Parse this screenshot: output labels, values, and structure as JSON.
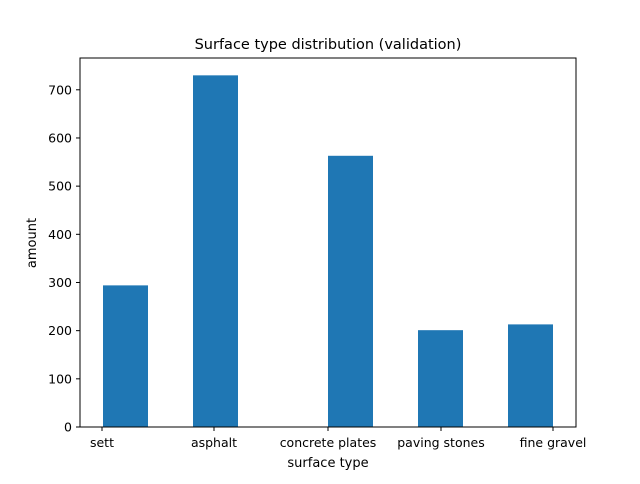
{
  "chart_data": {
    "type": "bar",
    "title": "Surface type distribution (validation)",
    "xlabel": "surface type",
    "ylabel": "amount",
    "categories": [
      "sett",
      "asphalt",
      "concrete plates",
      "paving stones",
      "fine gravel"
    ],
    "values": [
      294,
      730,
      563,
      201,
      213
    ],
    "ylim": [
      0,
      766
    ],
    "yticks": [
      0,
      100,
      200,
      300,
      400,
      500,
      600,
      700
    ],
    "grid": false,
    "legend": "none",
    "bar_color": "#1f77b4"
  }
}
